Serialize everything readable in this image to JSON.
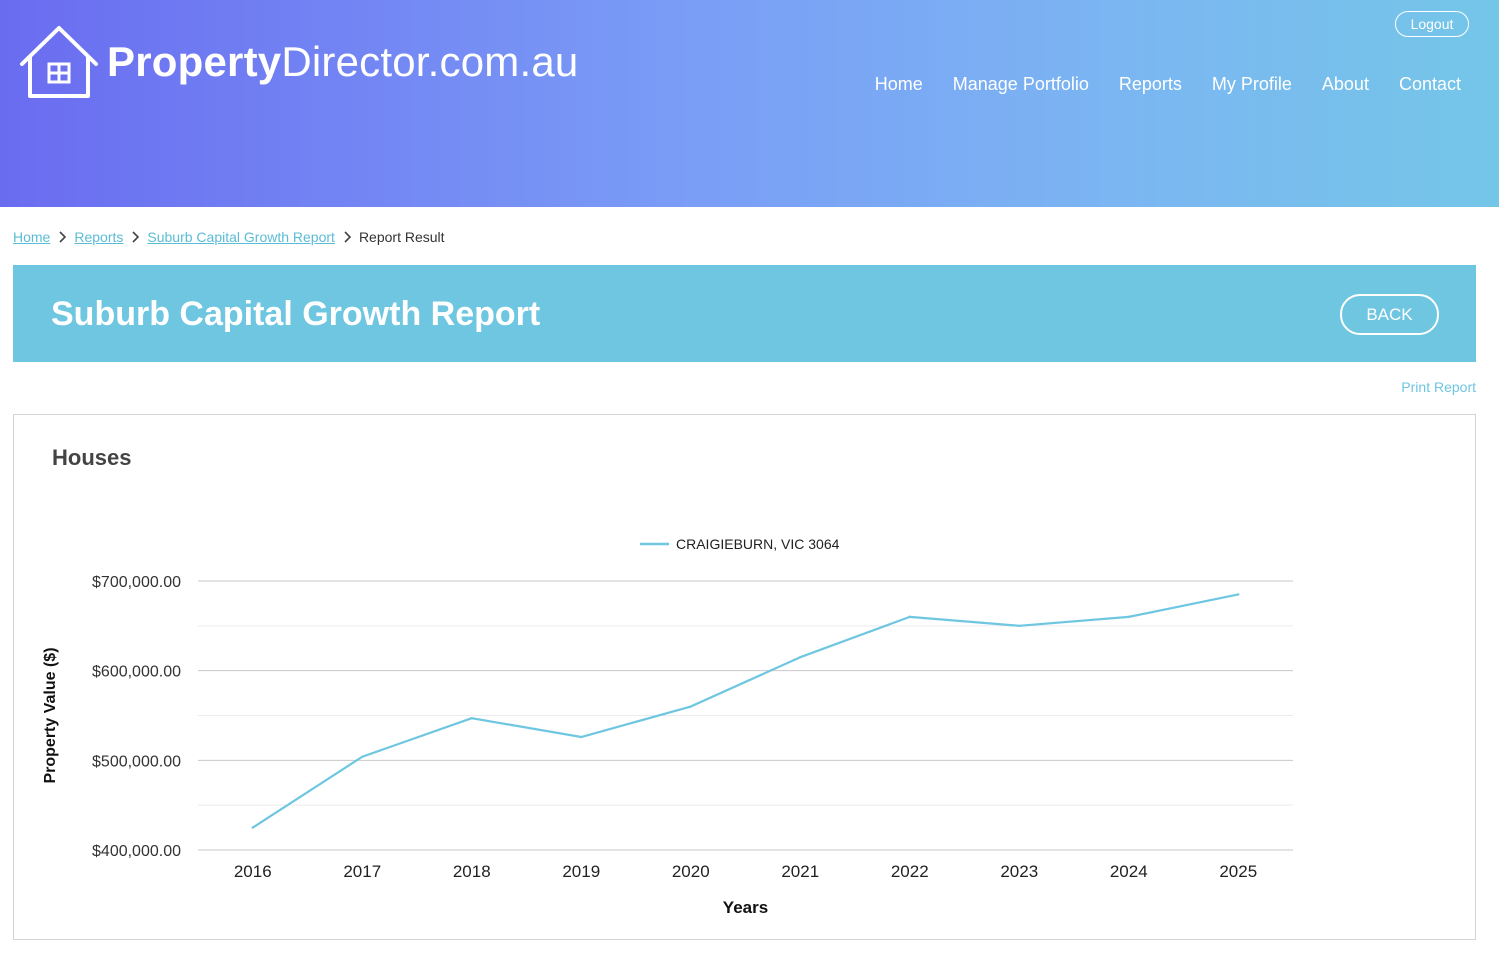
{
  "brand": {
    "name_bold": "Property",
    "name_regular": "Director.com.au"
  },
  "header": {
    "logout_label": "Logout",
    "nav": [
      "Home",
      "Manage Portfolio",
      "Reports",
      "My Profile",
      "About",
      "Contact"
    ]
  },
  "breadcrumb": {
    "items": [
      "Home",
      "Reports",
      "Suburb Capital Growth Report"
    ],
    "current": "Report Result"
  },
  "banner": {
    "title": "Suburb Capital Growth Report",
    "back_label": "BACK"
  },
  "print_label": "Print Report",
  "card": {
    "title": "Houses"
  },
  "colors": {
    "accent": "#6ec6e0",
    "link": "#5bbcd6",
    "line": "#6ec6e0"
  },
  "chart_data": {
    "type": "line",
    "xlabel": "Years",
    "ylabel": "Property Value ($)",
    "legend_position": "top",
    "grid": true,
    "ylim": [
      400000,
      700000
    ],
    "yticks": [
      "$400,000.00",
      "$500,000.00",
      "$600,000.00",
      "$700,000.00"
    ],
    "x": [
      "2016",
      "2017",
      "2018",
      "2019",
      "2020",
      "2021",
      "2022",
      "2023",
      "2024",
      "2025"
    ],
    "series": [
      {
        "name": "CRAIGIEBURN, VIC 3064",
        "values": [
          425000,
          504000,
          547000,
          526000,
          560000,
          615000,
          660000,
          650000,
          660000,
          685000
        ]
      }
    ]
  }
}
